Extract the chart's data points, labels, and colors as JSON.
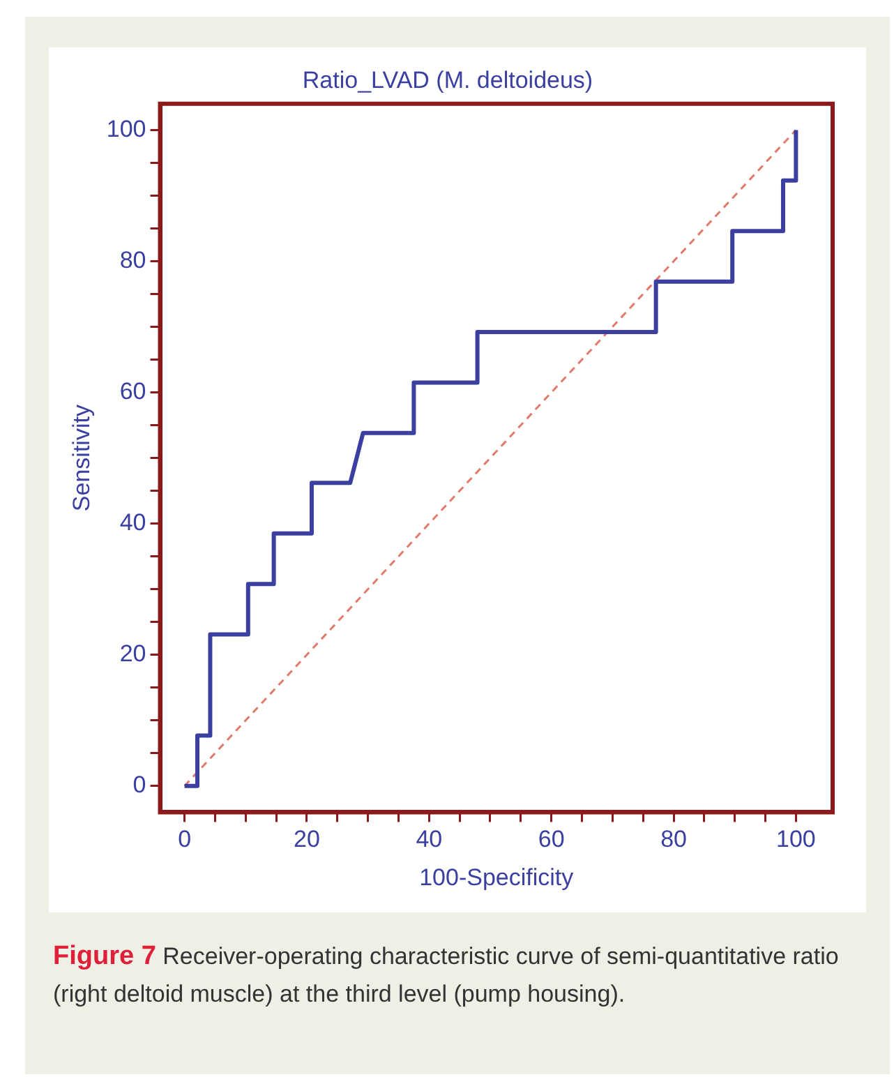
{
  "chart_data": {
    "type": "line",
    "title": "Ratio_LVAD (M. deltoideus)",
    "xlabel": "100-Specificity",
    "ylabel": "Sensitivity",
    "xlim": [
      -4,
      106
    ],
    "ylim": [
      -4,
      104
    ],
    "xticks": [
      0,
      {
        "value": 5,
        "label": null
      },
      {
        "value": 10,
        "label": null
      },
      {
        "value": 15,
        "label": null
      },
      20,
      {
        "value": 25,
        "label": null
      },
      {
        "value": 30,
        "label": null
      },
      {
        "value": 35,
        "label": null
      },
      40,
      {
        "value": 45,
        "label": null
      },
      {
        "value": 50,
        "label": null
      },
      {
        "value": 55,
        "label": null
      },
      60,
      {
        "value": 65,
        "label": null
      },
      {
        "value": 70,
        "label": null
      },
      {
        "value": 75,
        "label": null
      },
      80,
      {
        "value": 85,
        "label": null
      },
      {
        "value": 90,
        "label": null
      },
      {
        "value": 95,
        "label": null
      },
      100
    ],
    "yticks": [
      0,
      {
        "value": 5,
        "label": null
      },
      {
        "value": 10,
        "label": null
      },
      {
        "value": 15,
        "label": null
      },
      20,
      {
        "value": 25,
        "label": null
      },
      {
        "value": 30,
        "label": null
      },
      {
        "value": 35,
        "label": null
      },
      40,
      {
        "value": 45,
        "label": null
      },
      {
        "value": 50,
        "label": null
      },
      {
        "value": 55,
        "label": null
      },
      60,
      {
        "value": 65,
        "label": null
      },
      {
        "value": 70,
        "label": null
      },
      {
        "value": 75,
        "label": null
      },
      80,
      {
        "value": 85,
        "label": null
      },
      {
        "value": 90,
        "label": null
      },
      {
        "value": 95,
        "label": null
      },
      100
    ],
    "grid": false,
    "legend": false,
    "marker": "none",
    "series": [
      {
        "color": "#3b3fa0",
        "line_style": "solid",
        "x": [
          0,
          2.1,
          2.1,
          4.2,
          4.2,
          10.4,
          10.4,
          14.6,
          14.6,
          20.8,
          20.8,
          27.1,
          29.2,
          37.5,
          37.5,
          47.9,
          47.9,
          77.1,
          77.1,
          89.6,
          89.6,
          97.9,
          97.9,
          100,
          100
        ],
        "values": [
          0,
          0,
          7.7,
          7.7,
          23.1,
          23.1,
          30.8,
          30.8,
          38.5,
          38.5,
          46.2,
          46.2,
          53.8,
          53.8,
          61.5,
          61.5,
          69.2,
          69.2,
          76.9,
          76.9,
          84.6,
          84.6,
          92.3,
          92.3,
          100
        ]
      },
      {
        "color": "#e07a6a",
        "line_style": "dashed",
        "x": [
          0,
          100
        ],
        "values": [
          0,
          100
        ]
      }
    ],
    "annotations": [
      "Figure 7 Receiver-operating characteristic curve of semi-quantitative ratio (right deltoid muscle) at the third level (pump housing)."
    ]
  }
}
